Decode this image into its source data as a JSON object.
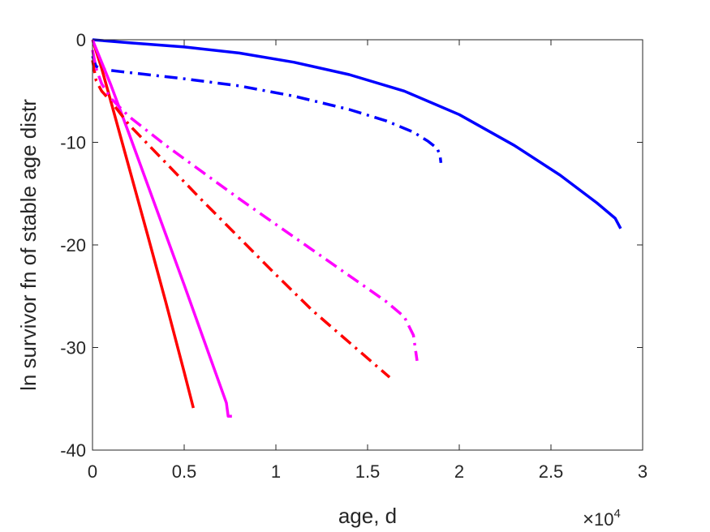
{
  "chart_data": {
    "type": "line",
    "title": "",
    "xlabel": "age, d",
    "ylabel": "ln survivor fn of stable age distr",
    "x_multiplier": {
      "base": "10",
      "exponent": "4"
    },
    "xlim": [
      0,
      30000
    ],
    "ylim": [
      -40,
      0
    ],
    "x_ticks": [
      0,
      5000,
      10000,
      15000,
      20000,
      25000,
      30000
    ],
    "x_tick_labels": [
      "0",
      "0.5",
      "1",
      "1.5",
      "2",
      "2.5",
      "3"
    ],
    "y_ticks": [
      0,
      -10,
      -20,
      -30,
      -40
    ],
    "y_tick_labels": [
      "0",
      "-10",
      "-20",
      "-30",
      "-40"
    ],
    "grid": false,
    "series": [
      {
        "color": "#0000ff",
        "style": "solid",
        "x": [
          0,
          2000,
          5000,
          8000,
          11000,
          14000,
          17000,
          20000,
          23000,
          25500,
          27500,
          28500,
          28800
        ],
        "y": [
          0,
          -0.3,
          -0.7,
          -1.3,
          -2.2,
          -3.4,
          -5.0,
          -7.3,
          -10.3,
          -13.2,
          -15.9,
          -17.4,
          -18.4
        ]
      },
      {
        "color": "#0000ff",
        "style": "dashdot",
        "x": [
          0,
          200,
          600,
          1500,
          3000,
          5000,
          8000,
          11000,
          14000,
          16000,
          17500,
          18300,
          18800,
          18950,
          19000
        ],
        "y": [
          -1.6,
          -2.6,
          -2.9,
          -3.1,
          -3.4,
          -3.8,
          -4.5,
          -5.5,
          -6.8,
          -7.9,
          -9.0,
          -9.9,
          -10.6,
          -11.3,
          -12.0
        ]
      },
      {
        "color": "#ff0000",
        "style": "solid",
        "x": [
          0,
          500,
          1000,
          2000,
          3000,
          4000,
          5000,
          5500
        ],
        "y": [
          0,
          -2.8,
          -6.0,
          -12.5,
          -19.0,
          -25.6,
          -32.4,
          -35.9
        ]
      },
      {
        "color": "#ff00ff",
        "style": "solid",
        "x": [
          0,
          1000,
          2000,
          3000,
          4000,
          5000,
          6000,
          7000,
          7300,
          7400,
          7600
        ],
        "y": [
          0,
          -4.4,
          -9.2,
          -14.1,
          -19.0,
          -23.9,
          -28.9,
          -33.9,
          -35.4,
          -36.7,
          -36.7
        ]
      },
      {
        "color": "#ff0000",
        "style": "dashdot",
        "x": [
          0,
          200,
          500,
          1000,
          2000,
          4000,
          6000,
          8000,
          10000,
          12000,
          14000,
          16200
        ],
        "y": [
          -2.0,
          -4.0,
          -5.0,
          -6.0,
          -8.3,
          -12.0,
          -15.7,
          -19.3,
          -22.9,
          -26.4,
          -29.5,
          -32.9
        ]
      },
      {
        "color": "#ff00ff",
        "style": "dashdot",
        "x": [
          0,
          200,
          500,
          1000,
          2000,
          4000,
          6000,
          8000,
          10000,
          12000,
          14000,
          16000,
          17000,
          17500,
          17700
        ],
        "y": [
          -1.0,
          -2.8,
          -4.3,
          -5.7,
          -7.5,
          -10.3,
          -12.9,
          -15.5,
          -18.0,
          -20.5,
          -23.0,
          -25.5,
          -27.0,
          -28.8,
          -31.3
        ]
      }
    ]
  }
}
